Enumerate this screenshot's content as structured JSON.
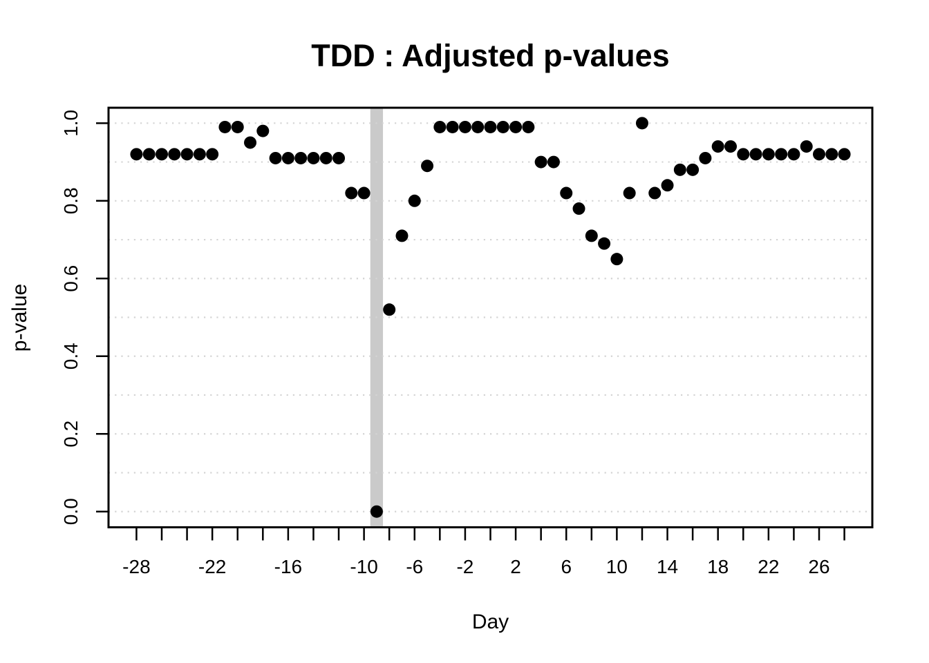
{
  "figure": {
    "title": "TDD : Adjusted p-values",
    "xlabel": "Day",
    "ylabel": "p-value"
  },
  "chart_data": {
    "type": "scatter",
    "title": "TDD : Adjusted p-values",
    "xlabel": "Day",
    "ylabel": "p-value",
    "x": [
      -28,
      -27,
      -26,
      -25,
      -24,
      -23,
      -22,
      -21,
      -20,
      -19,
      -18,
      -17,
      -16,
      -15,
      -14,
      -13,
      -12,
      -11,
      -10,
      -9,
      -8,
      -7,
      -6,
      -5,
      -4,
      -3,
      -2,
      -1,
      0,
      1,
      2,
      3,
      4,
      5,
      6,
      7,
      8,
      9,
      10,
      11,
      12,
      13,
      14,
      15,
      16,
      17,
      18,
      19,
      20,
      21,
      22,
      23,
      24,
      25,
      26,
      27,
      28
    ],
    "y": [
      0.92,
      0.92,
      0.92,
      0.92,
      0.92,
      0.92,
      0.92,
      0.99,
      0.99,
      0.95,
      0.98,
      0.91,
      0.91,
      0.91,
      0.91,
      0.91,
      0.91,
      0.82,
      0.82,
      0.0,
      0.52,
      0.71,
      0.8,
      0.89,
      0.99,
      0.99,
      0.99,
      0.99,
      0.99,
      0.99,
      0.99,
      0.99,
      0.9,
      0.9,
      0.82,
      0.78,
      0.71,
      0.69,
      0.65,
      0.82,
      1.0,
      0.82,
      0.84,
      0.88,
      0.88,
      0.91,
      0.94,
      0.94,
      0.92,
      0.92,
      0.92,
      0.92,
      0.92,
      0.94,
      0.92,
      0.92,
      0.92
    ],
    "xlim": [
      -30.21,
      30.21
    ],
    "ylim": [
      -0.0405,
      1.0397
    ],
    "x_ticks": {
      "start": -28,
      "end": 28,
      "step": 2
    },
    "x_tick_labels": [
      {
        "day": -28,
        "label": "-28"
      },
      {
        "day": -22,
        "label": "-22"
      },
      {
        "day": -16,
        "label": "-16"
      },
      {
        "day": -10,
        "label": "-10"
      },
      {
        "day": -6,
        "label": "-6"
      },
      {
        "day": -2,
        "label": "-2"
      },
      {
        "day": 2,
        "label": "2"
      },
      {
        "day": 6,
        "label": "6"
      },
      {
        "day": 10,
        "label": "10"
      },
      {
        "day": 14,
        "label": "14"
      },
      {
        "day": 18,
        "label": "18"
      },
      {
        "day": 22,
        "label": "22"
      },
      {
        "day": 26,
        "label": "26"
      }
    ],
    "y_ticks": [
      {
        "value": 0.0,
        "label": "0.0"
      },
      {
        "value": 0.2,
        "label": "0.2"
      },
      {
        "value": 0.4,
        "label": "0.4"
      },
      {
        "value": 0.6,
        "label": "0.6"
      },
      {
        "value": 0.8,
        "label": "0.8"
      },
      {
        "value": 1.0,
        "label": "1.0"
      }
    ],
    "gridlines": {
      "values": [
        0.0,
        0.1,
        0.2,
        0.3,
        0.4,
        0.5,
        0.6,
        0.7,
        0.8,
        0.9,
        1.0
      ],
      "style": "dotted",
      "color": "#d4d4d4"
    },
    "highlight_band": {
      "day": -9,
      "half_width_days": 0.5,
      "color": "#cacaca"
    },
    "point_color": "#000000",
    "background": "#ffffff",
    "legend": "none",
    "grid_on": true
  }
}
